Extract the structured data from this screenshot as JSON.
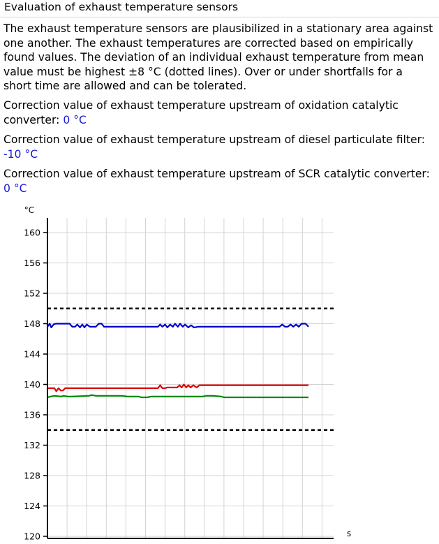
{
  "header": {
    "title": "Evaluation of exhaust temperature sensors"
  },
  "description": "The exhaust temperature sensors are plausibilized in a stationary area against one another. The exhaust temperatures are corrected based on empirically found values. The deviation of an individual exhaust temperature from mean value must be highest ±8 °C (dotted lines). Over or under shortfalls for a short time are allowed and can be tolerated.",
  "corrections": [
    {
      "label": "Correction value of exhaust temperature upstream of oxidation catalytic converter:",
      "value": "0 °C"
    },
    {
      "label": "Correction value of exhaust temperature upstream of diesel particulate filter:",
      "value": "-10 °C"
    },
    {
      "label": "Correction value of exhaust temperature upstream of SCR catalytic converter:",
      "value": "0 °C"
    }
  ],
  "chart_data": {
    "type": "line",
    "title": "",
    "ylabel": "°C",
    "xlabel": "s",
    "ylim": [
      120,
      160
    ],
    "yticks": [
      120,
      124,
      128,
      132,
      136,
      140,
      144,
      148,
      152,
      156,
      160
    ],
    "xlim": [
      0,
      100
    ],
    "grid": true,
    "colors": {
      "blue": "#0000cc",
      "red": "#e00000",
      "green": "#008800",
      "limit": "#000000"
    },
    "limits": [
      150,
      134
    ],
    "series": [
      {
        "color": "blue",
        "x": [
          0,
          0.8,
          1.4,
          2.2,
          3.0,
          5.0,
          8.0,
          9.0,
          10.0,
          10.8,
          11.8,
          12.6,
          13.4,
          14.2,
          15.4,
          17.5,
          18.6,
          19.6,
          20.5,
          40.0,
          40.8,
          41.6,
          42.6,
          43.4,
          44.4,
          45.4,
          46.2,
          47.2,
          48.0,
          49.0,
          49.8,
          51.0,
          52.0,
          53.0,
          54.5,
          84.0,
          85.0,
          86.0,
          87.0,
          88.0,
          89.0,
          90.0,
          91.0,
          92.0,
          93.5,
          94.5
        ],
        "y": [
          147.6,
          148.0,
          147.5,
          147.9,
          148.0,
          148.0,
          148.0,
          147.6,
          147.6,
          147.9,
          147.5,
          147.9,
          147.5,
          147.9,
          147.6,
          147.6,
          148.0,
          148.0,
          147.6,
          147.6,
          147.9,
          147.6,
          147.9,
          147.5,
          147.9,
          147.6,
          148.0,
          147.6,
          148.0,
          147.6,
          147.9,
          147.5,
          147.8,
          147.5,
          147.6,
          147.6,
          147.9,
          147.6,
          147.6,
          147.9,
          147.6,
          147.9,
          147.6,
          148.0,
          148.0,
          147.6
        ]
      },
      {
        "color": "red",
        "x": [
          0,
          2.5,
          3.2,
          4.0,
          4.8,
          5.6,
          6.4,
          7.0,
          40.0,
          40.8,
          41.6,
          42.5,
          43.3,
          44.1,
          45.4,
          47.0,
          47.8,
          48.6,
          49.4,
          50.2,
          51.0,
          51.8,
          52.8,
          54.0,
          55.0,
          94.5
        ],
        "y": [
          139.5,
          139.5,
          139.1,
          139.5,
          139.2,
          139.2,
          139.5,
          139.5,
          139.5,
          139.9,
          139.5,
          139.5,
          139.6,
          139.6,
          139.6,
          139.6,
          139.9,
          139.6,
          140.0,
          139.6,
          139.9,
          139.6,
          139.9,
          139.6,
          139.9,
          139.9
        ]
      },
      {
        "color": "green",
        "x": [
          0,
          1.0,
          2.5,
          5.0,
          5.8,
          7.5,
          8.5,
          15.0,
          16.0,
          17.5,
          18.5,
          25.0,
          27.0,
          29.0,
          30.5,
          33.0,
          34.0,
          36.0,
          37.5,
          52.0,
          54.0,
          56.0,
          57.5,
          60.0,
          63.0,
          64.0,
          66.0,
          67.5,
          94.5
        ],
        "y": [
          138.3,
          138.4,
          138.5,
          138.4,
          138.5,
          138.4,
          138.4,
          138.5,
          138.6,
          138.5,
          138.5,
          138.5,
          138.5,
          138.4,
          138.4,
          138.4,
          138.3,
          138.3,
          138.4,
          138.4,
          138.4,
          138.4,
          138.5,
          138.5,
          138.4,
          138.3,
          138.3,
          138.3,
          138.3
        ]
      }
    ]
  }
}
